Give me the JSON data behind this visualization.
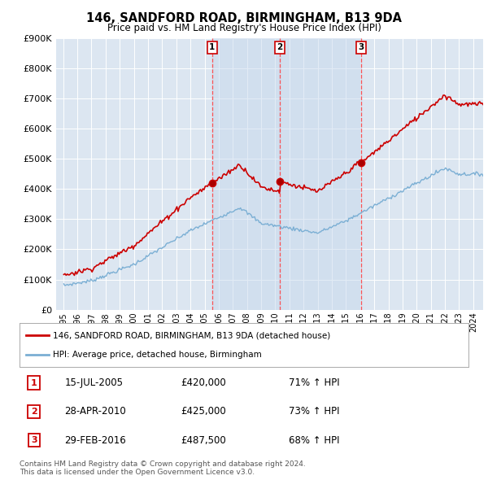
{
  "title": "146, SANDFORD ROAD, BIRMINGHAM, B13 9DA",
  "subtitle": "Price paid vs. HM Land Registry's House Price Index (HPI)",
  "sale_prices": [
    420000,
    425000,
    487500
  ],
  "sale_labels": [
    "1",
    "2",
    "3"
  ],
  "red_color": "#cc0000",
  "blue_color": "#7bafd4",
  "dashed_red": "#ff4444",
  "background_plot": "#dce6f1",
  "background_highlight": "#c8d9ed",
  "background_fig": "#ffffff",
  "ylim": [
    0,
    900000
  ],
  "yticks": [
    0,
    100000,
    200000,
    300000,
    400000,
    500000,
    600000,
    700000,
    800000,
    900000
  ],
  "legend_entries": [
    "146, SANDFORD ROAD, BIRMINGHAM, B13 9DA (detached house)",
    "HPI: Average price, detached house, Birmingham"
  ],
  "table_rows": [
    [
      "1",
      "15-JUL-2005",
      "£420,000",
      "71% ↑ HPI"
    ],
    [
      "2",
      "28-APR-2010",
      "£425,000",
      "73% ↑ HPI"
    ],
    [
      "3",
      "29-FEB-2016",
      "£487,500",
      "68% ↑ HPI"
    ]
  ],
  "footer": "Contains HM Land Registry data © Crown copyright and database right 2024.\nThis data is licensed under the Open Government Licence v3.0.",
  "t1": 2005.54,
  "t2": 2010.31,
  "t3": 2016.08
}
